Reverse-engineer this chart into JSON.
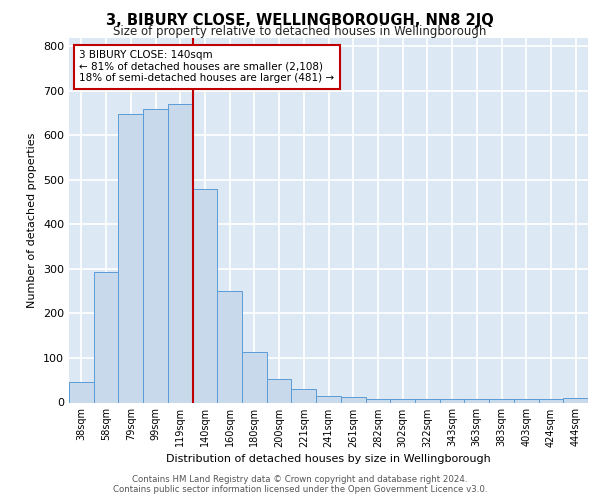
{
  "title": "3, BIBURY CLOSE, WELLINGBOROUGH, NN8 2JQ",
  "subtitle": "Size of property relative to detached houses in Wellingborough",
  "xlabel": "Distribution of detached houses by size in Wellingborough",
  "ylabel": "Number of detached properties",
  "categories": [
    "38sqm",
    "58sqm",
    "79sqm",
    "99sqm",
    "119sqm",
    "140sqm",
    "160sqm",
    "180sqm",
    "200sqm",
    "221sqm",
    "241sqm",
    "261sqm",
    "282sqm",
    "302sqm",
    "322sqm",
    "343sqm",
    "363sqm",
    "383sqm",
    "403sqm",
    "424sqm",
    "444sqm"
  ],
  "values": [
    47,
    293,
    648,
    660,
    670,
    480,
    250,
    113,
    52,
    30,
    15,
    13,
    7,
    7,
    7,
    8,
    7,
    7,
    7,
    7,
    10
  ],
  "bar_color": "#c9d9ec",
  "bar_edge_color": "#5b9bd5",
  "highlight_index": 5,
  "highlight_color": "#c00000",
  "annotation_line1": "3 BIBURY CLOSE: 140sqm",
  "annotation_line2": "← 81% of detached houses are smaller (2,108)",
  "annotation_line3": "18% of semi-detached houses are larger (481) →",
  "annotation_box_color": "#ffffff",
  "annotation_box_edge": "#c00000",
  "ylim": [
    0,
    820
  ],
  "yticks": [
    0,
    100,
    200,
    300,
    400,
    500,
    600,
    700,
    800
  ],
  "background_color": "#dce9f5",
  "grid_color": "#ffffff",
  "fig_bg": "#ffffff",
  "footer_line1": "Contains HM Land Registry data © Crown copyright and database right 2024.",
  "footer_line2": "Contains public sector information licensed under the Open Government Licence v3.0."
}
